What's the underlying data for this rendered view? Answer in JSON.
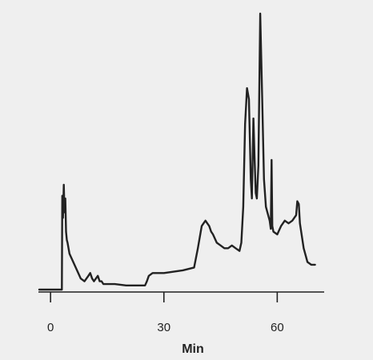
{
  "chart_data": {
    "type": "line",
    "title": "",
    "xlabel": "Min",
    "ylabel": "",
    "xlim": [
      -3,
      72
    ],
    "ylim": [
      0,
      100
    ],
    "xticks": [
      0,
      30,
      60
    ],
    "xtick_labels": [
      "0",
      "30",
      "60"
    ],
    "grid": false,
    "legend": "none",
    "line_color": "#222222",
    "background": "#efefef",
    "series": [
      {
        "x": [
          -3,
          3.0,
          3.1,
          3.3,
          3.5,
          3.7,
          3.9,
          4.1,
          4.3,
          4.5,
          5,
          6,
          7,
          8,
          9,
          10,
          10.5,
          11,
          11.5,
          12,
          12.5,
          13,
          13.5,
          14,
          15,
          17,
          20,
          25,
          25.5,
          26,
          27,
          30,
          35,
          38,
          39,
          40,
          40.5,
          41,
          41.5,
          42,
          42.5,
          43,
          44,
          45,
          46,
          47,
          48,
          49,
          50,
          50.5,
          51,
          51.5,
          52,
          52.5,
          53,
          53.3,
          53.7,
          54,
          54.3,
          54.6,
          55,
          55.5,
          56,
          56.5,
          57,
          58,
          58.3,
          58.5,
          58.7,
          59,
          60,
          61,
          62,
          63,
          64,
          65,
          65.3,
          65.7,
          66,
          67,
          68,
          69,
          70
        ],
        "y": [
          0,
          0,
          34,
          26,
          38,
          28,
          33,
          21,
          18,
          17,
          13,
          10,
          7,
          4,
          3,
          5,
          6,
          4,
          3,
          4,
          5,
          3,
          3,
          2,
          2,
          2,
          1.5,
          1.5,
          3,
          5,
          6,
          6,
          7,
          8,
          15,
          23,
          24,
          25,
          24,
          23,
          21,
          20,
          17,
          16,
          15,
          15,
          16,
          15,
          14,
          17,
          30,
          60,
          73,
          69,
          40,
          33,
          62,
          48,
          35,
          33,
          45,
          100,
          70,
          40,
          30,
          25,
          22,
          47,
          23,
          21,
          20,
          23,
          25,
          24,
          25,
          27,
          32,
          31,
          24,
          15,
          10,
          9,
          9
        ]
      }
    ]
  }
}
